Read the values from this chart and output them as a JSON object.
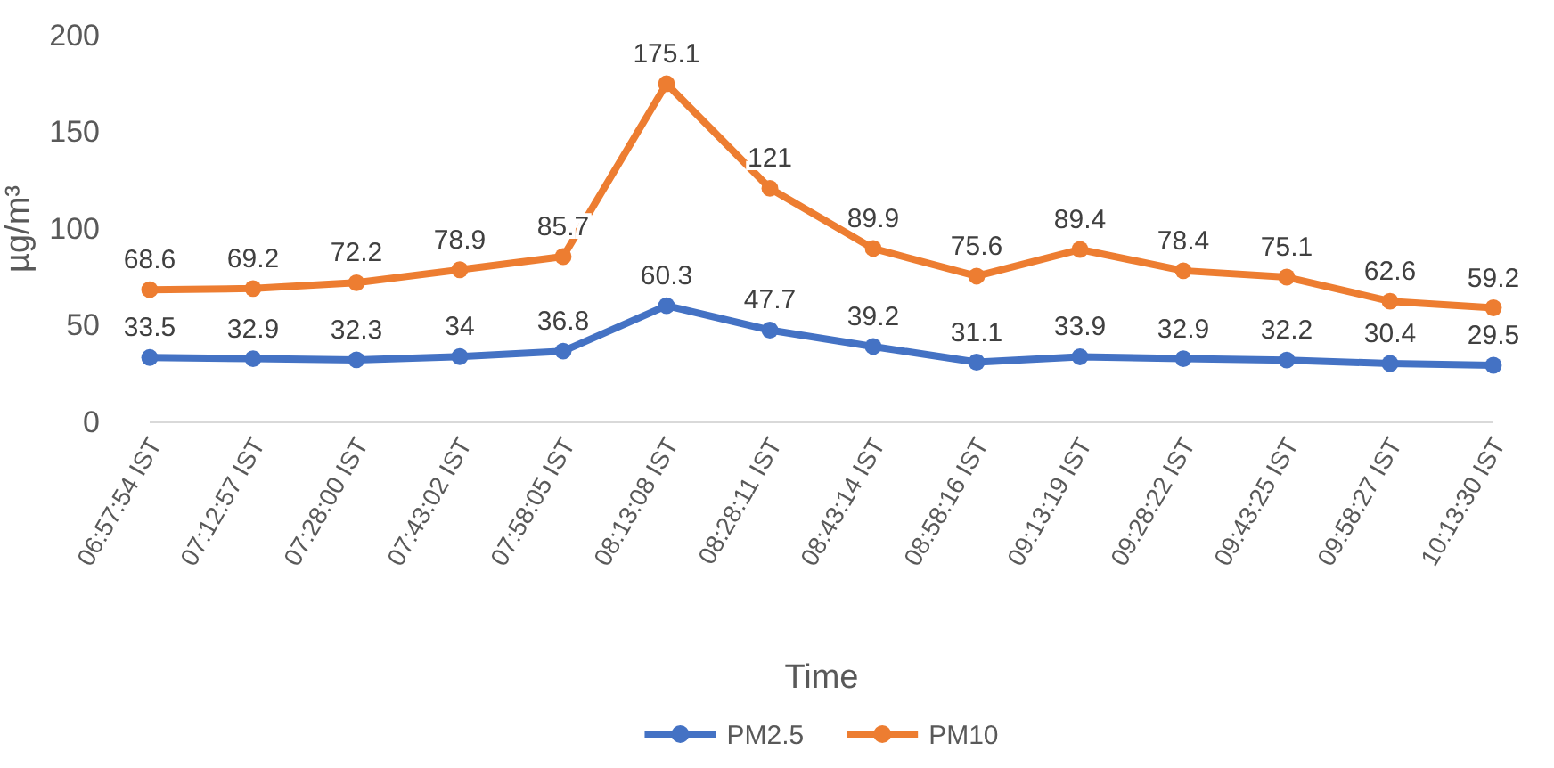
{
  "chart_data": {
    "type": "line",
    "xlabel": "Time",
    "ylabel": "µg/m³",
    "categories": [
      "06:57:54 IST",
      "07:12:57 IST",
      "07:28:00 IST",
      "07:43:02 IST",
      "07:58:05 IST",
      "08:13:08 IST",
      "08:28:11 IST",
      "08:43:14 IST",
      "08:58:16 IST",
      "09:13:19 IST",
      "09:28:22 IST",
      "09:43:25 IST",
      "09:58:27 IST",
      "10:13:30 IST"
    ],
    "series": [
      {
        "name": "PM2.5",
        "color": "#4472c4",
        "values": [
          33.5,
          32.9,
          32.3,
          34,
          36.8,
          60.3,
          47.7,
          39.2,
          31.1,
          33.9,
          32.9,
          32.2,
          30.4,
          29.5
        ]
      },
      {
        "name": "PM10",
        "color": "#ed7d31",
        "values": [
          68.6,
          69.2,
          72.2,
          78.9,
          85.7,
          175.1,
          121,
          89.9,
          75.6,
          89.4,
          78.4,
          75.1,
          62.6,
          59.2
        ]
      }
    ],
    "ylim": [
      0,
      200
    ],
    "yticks": [
      0,
      50,
      100,
      150,
      200
    ],
    "grid": false,
    "legend": "bottom",
    "marker": "circle",
    "line_style": "solid",
    "data_labels": true
  }
}
